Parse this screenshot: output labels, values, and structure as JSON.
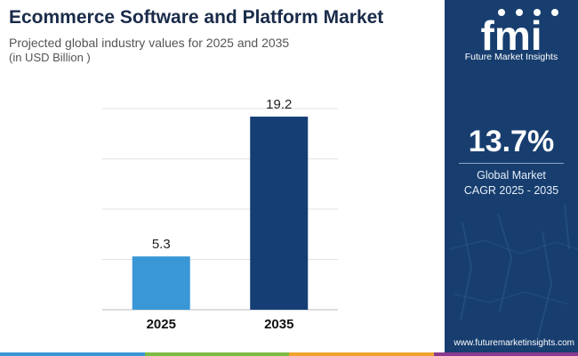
{
  "header": {
    "title": "Ecommerce Software and Platform Market",
    "subtitle": "Projected global industry values for 2025 and 2035",
    "unit": "(in USD Billion )"
  },
  "chart_data": {
    "type": "bar",
    "categories": [
      "2025",
      "2035"
    ],
    "values": [
      5.3,
      19.2
    ],
    "value_labels": [
      "5.3",
      "19.2"
    ],
    "ylim": [
      0,
      20
    ],
    "grid": true,
    "bar_colors": [
      "#3a97d6",
      "#153e75"
    ]
  },
  "sidebar": {
    "brand_letters": "fmi",
    "brand_name": "Future Market Insights",
    "cagr_value": "13.7%",
    "cagr_label_line1": "Global Market",
    "cagr_label_line2": "CAGR 2025 - 2035",
    "website": "www.futuremarketinsights.com"
  },
  "colors": {
    "panel_bg": "#173e6f",
    "title": "#1a2b4a",
    "strip": [
      "#3a97d6",
      "#7dbb42",
      "#f0a32c",
      "#8b3a8f"
    ]
  }
}
